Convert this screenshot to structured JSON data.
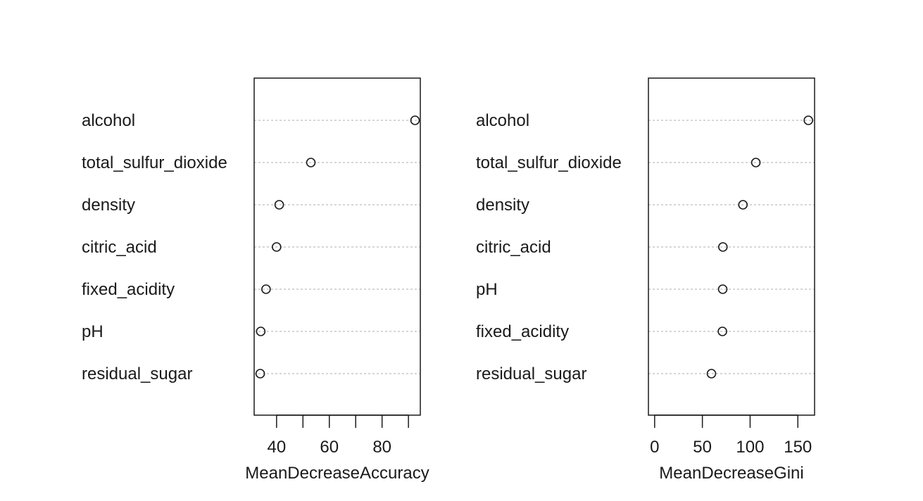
{
  "chart_data": [
    {
      "type": "scatter",
      "xlabel": "MeanDecreaseAccuracy",
      "categories": [
        "alcohol",
        "total_sulfur_dioxide",
        "density",
        "citric_acid",
        "fixed_acidity",
        "pH",
        "residual_sugar"
      ],
      "values": [
        92.5,
        53.0,
        41.0,
        40.0,
        36.0,
        34.0,
        33.8
      ],
      "xlim": [
        31.5,
        94.5
      ],
      "xticks": [
        40,
        60,
        80
      ],
      "minor_ticks": [
        30,
        50,
        70,
        90
      ],
      "grid": "dotted horizontal",
      "marker": "open circle"
    },
    {
      "type": "scatter",
      "xlabel": "MeanDecreaseGini",
      "categories": [
        "alcohol",
        "total_sulfur_dioxide",
        "density",
        "citric_acid",
        "pH",
        "fixed_acidity",
        "residual_sugar"
      ],
      "values": [
        161,
        106,
        92.5,
        71.5,
        71.3,
        71.0,
        59.5
      ],
      "xlim": [
        -6.5,
        167.5
      ],
      "xticks": [
        0,
        50,
        100,
        150
      ],
      "grid": "dotted horizontal",
      "marker": "open circle"
    }
  ]
}
